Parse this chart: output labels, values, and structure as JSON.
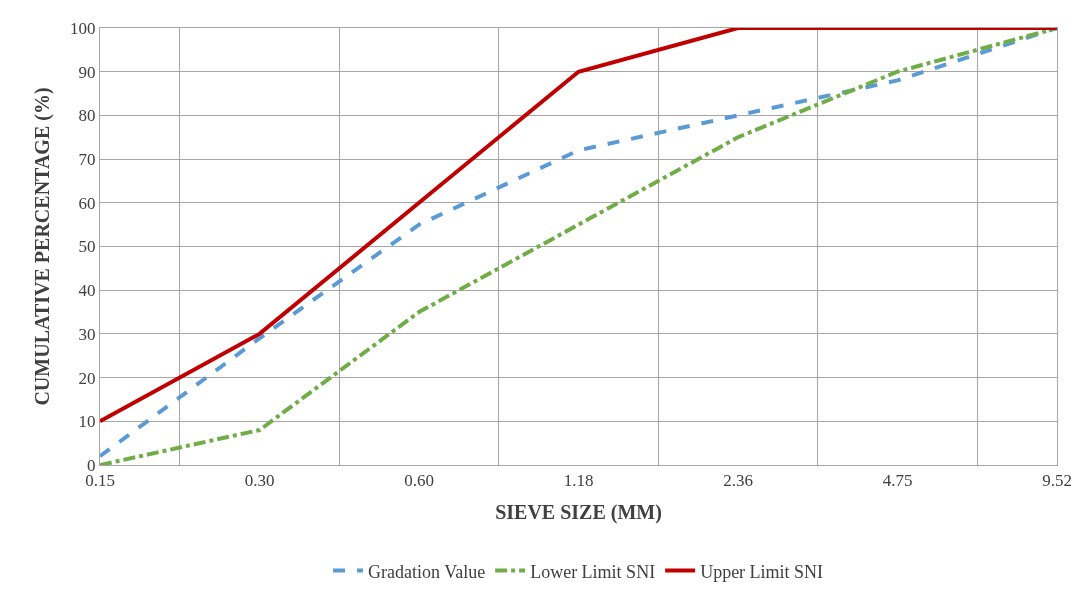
{
  "chart_data": {
    "type": "line",
    "xlabel": "SIEVE SIZE (MM)",
    "ylabel": "CUMULATIVE PERCENTAGE (%)",
    "categories": [
      "0.15",
      "0.30",
      "0.60",
      "1.18",
      "2.36",
      "4.75",
      "9.52"
    ],
    "series": [
      {
        "name": "Gradation Value",
        "color": "#5b9bd5",
        "line_style": "dashed",
        "values": [
          2,
          29,
          55,
          72,
          80,
          88,
          100
        ]
      },
      {
        "name": "Lower Limit SNI",
        "color": "#70ad47",
        "line_style": "dashdot",
        "values": [
          0,
          8,
          35,
          55,
          75,
          90,
          100
        ]
      },
      {
        "name": "Upper Limit SNI",
        "color": "#c00000",
        "line_style": "solid",
        "values": [
          10,
          30,
          60,
          90,
          100,
          100,
          100
        ]
      }
    ],
    "ylim": [
      0,
      100
    ],
    "yticks": [
      0,
      10,
      20,
      30,
      40,
      50,
      60,
      70,
      80,
      90,
      100
    ],
    "grid": true,
    "legend": "bottom",
    "marker": "none"
  }
}
